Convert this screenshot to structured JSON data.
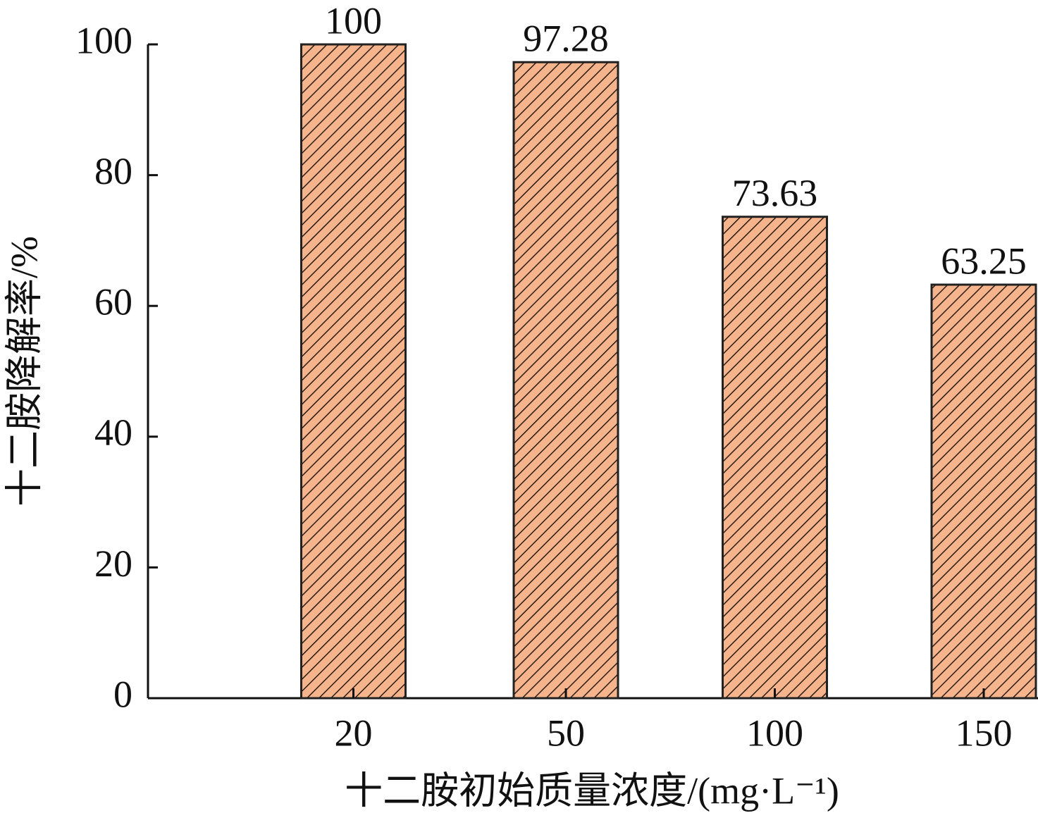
{
  "chart_data": {
    "type": "bar",
    "x_label": "十二胺初始质量浓度/(mg·L⁻¹)",
    "y_label": "十二胺降解率/%",
    "categories": [
      "20",
      "50",
      "100",
      "150"
    ],
    "values": [
      100,
      97.28,
      73.63,
      63.25
    ],
    "color": "#f6b48c",
    "ylim": [
      0,
      100
    ],
    "yticks": [
      0,
      20,
      40,
      60,
      80,
      100
    ],
    "grid": false
  }
}
